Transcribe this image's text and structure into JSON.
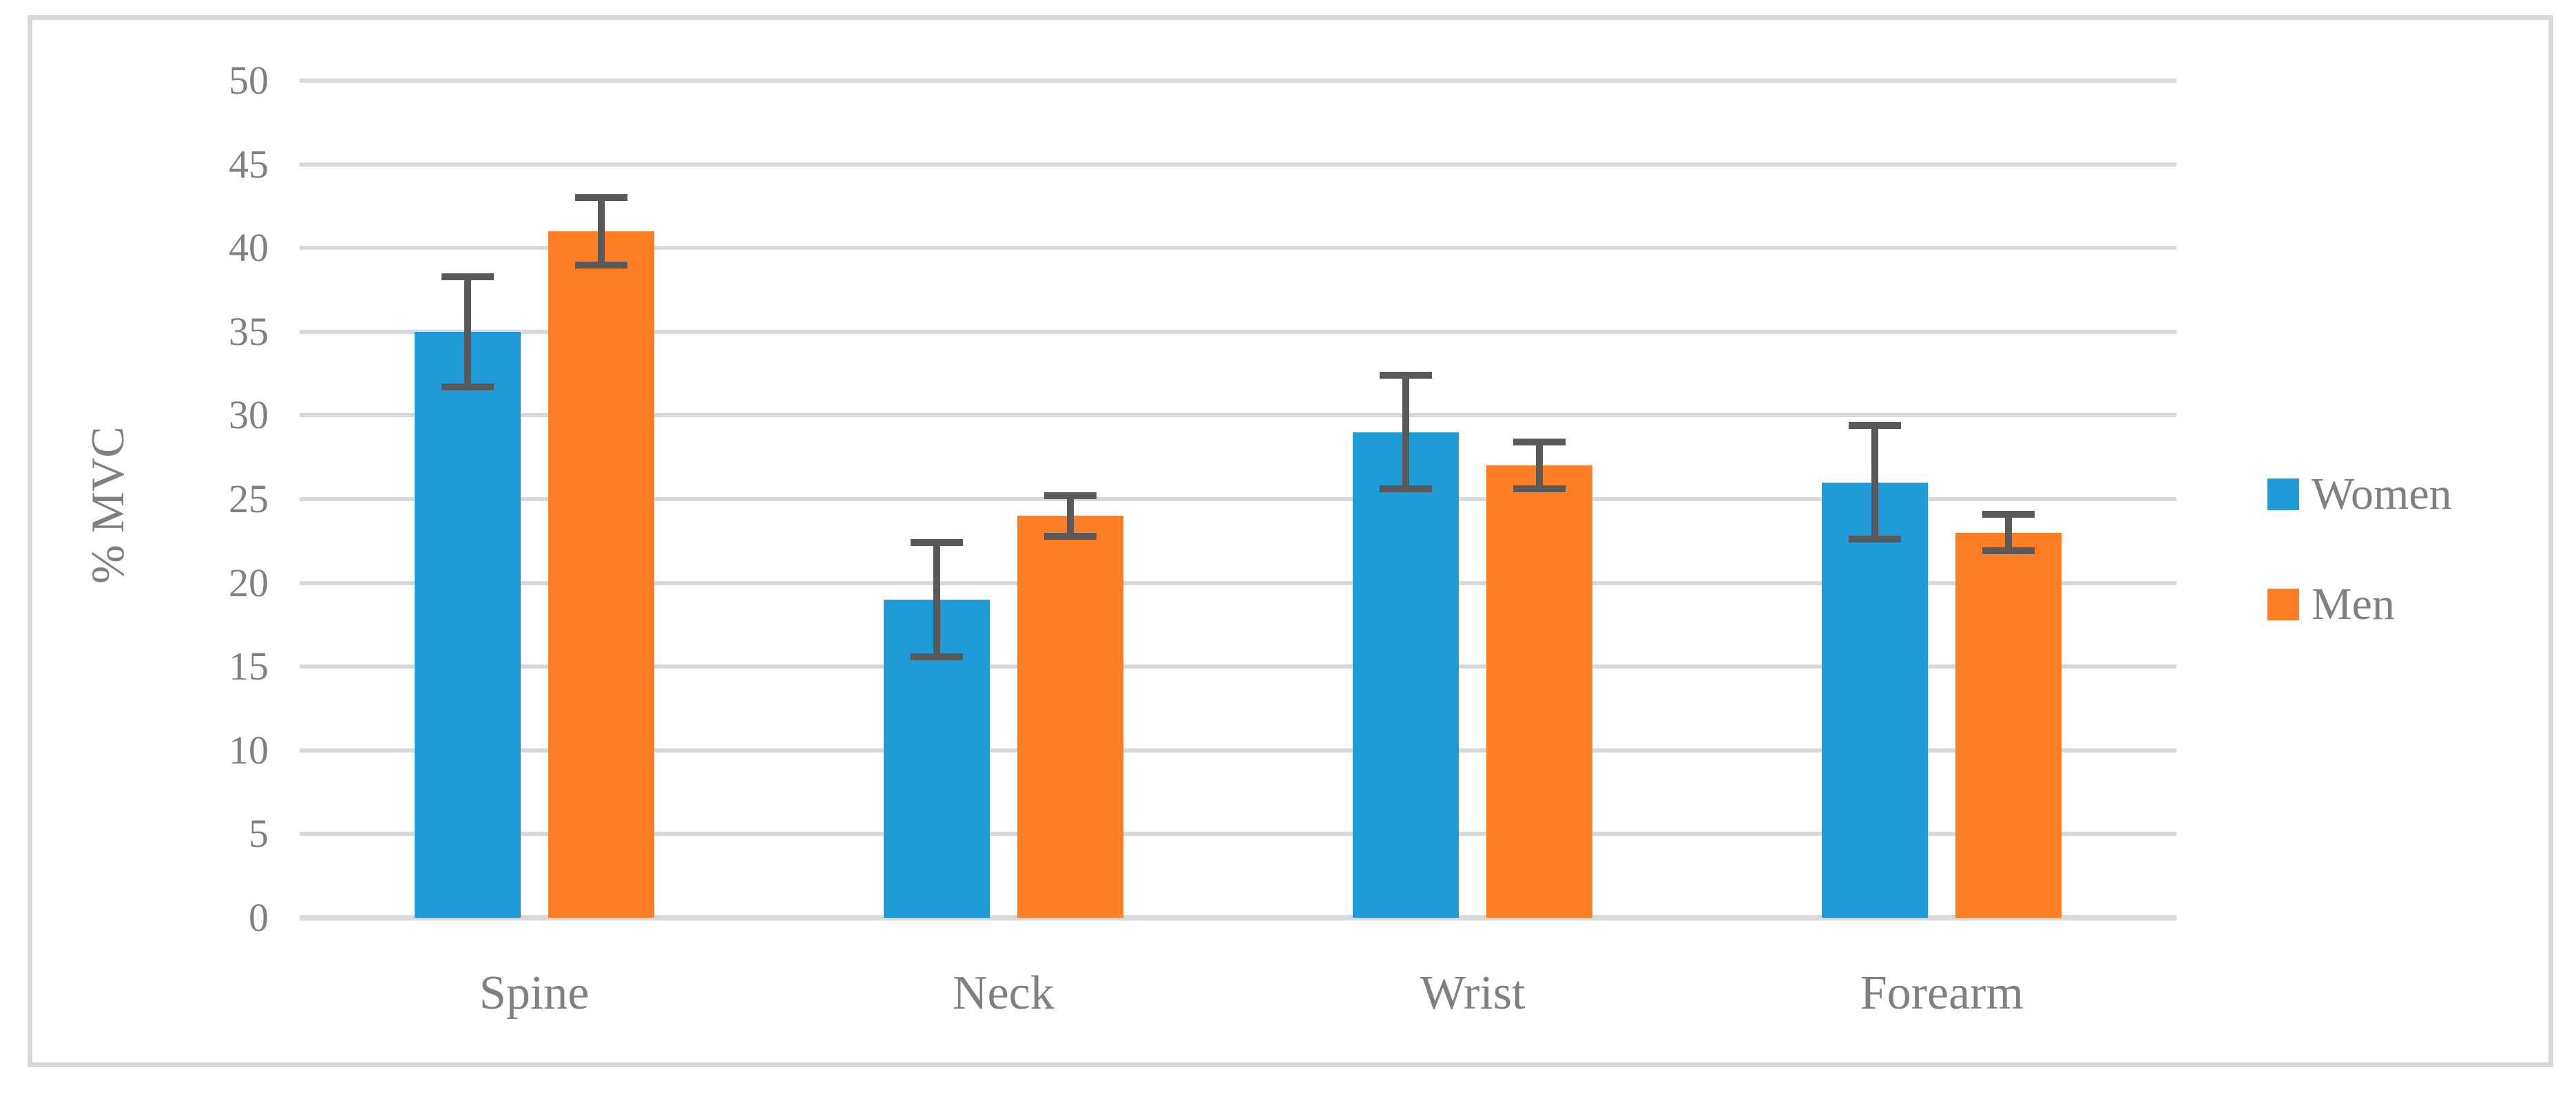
{
  "figure": {
    "background": "#FFFFFF",
    "border_color": "#D9D9D9",
    "text_color": "#808080"
  },
  "chart_data": {
    "type": "bar",
    "title": "",
    "xlabel": "",
    "ylabel": "% MVC",
    "categories": [
      "Spine",
      "Neck",
      "Wrist",
      "Forearm"
    ],
    "series": [
      {
        "name": "Women",
        "color": "#1F9CD8",
        "values": [
          35,
          19,
          29,
          26
        ],
        "errors": [
          3.3,
          3.4,
          3.4,
          3.4
        ]
      },
      {
        "name": "Men",
        "color": "#FD7E27",
        "values": [
          41,
          24,
          27,
          23
        ],
        "errors": [
          2.0,
          1.2,
          1.4,
          1.1
        ]
      }
    ],
    "ylim": [
      0,
      50
    ],
    "ytick_step": 5,
    "yticks": [
      "0",
      "5",
      "10",
      "15",
      "20",
      "25",
      "30",
      "35",
      "40",
      "45",
      "50"
    ],
    "grid": "horizontal",
    "gridline_color": "#D9D9D9",
    "error_bar_color": "#595959",
    "legend_position": "right",
    "legend_labels": [
      "Women",
      "Men"
    ]
  }
}
